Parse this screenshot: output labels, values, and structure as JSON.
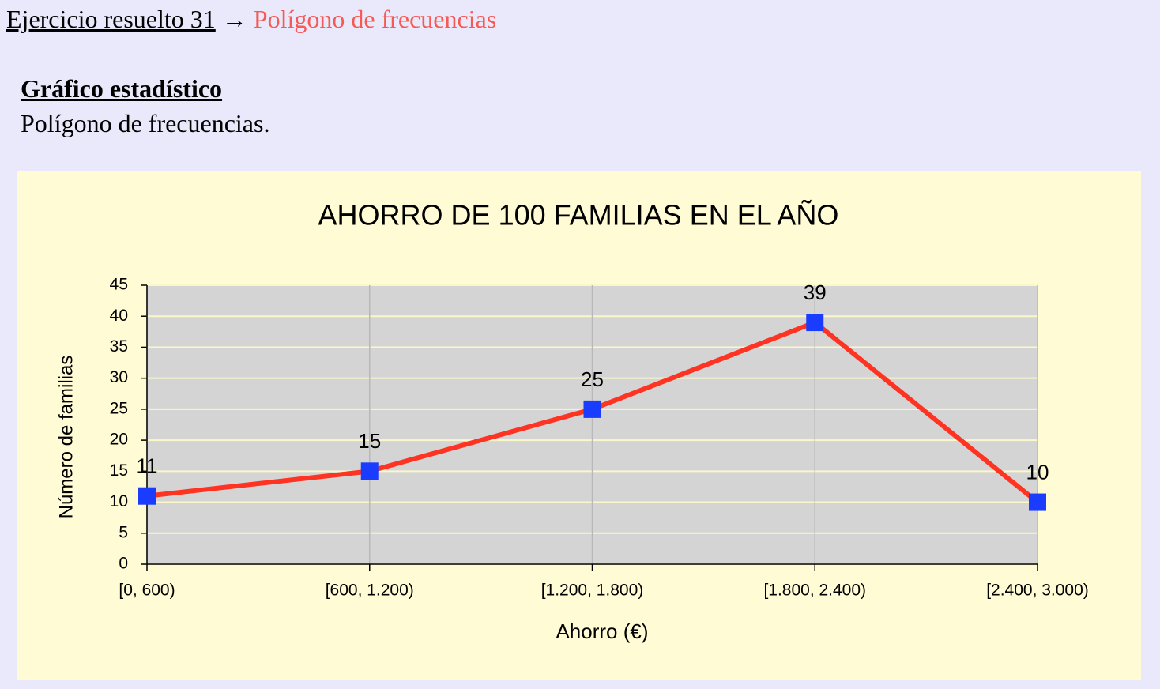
{
  "header": {
    "breadcrumb": "Ejercicio resuelto 31",
    "arrow": "→",
    "current": "Polígono de frecuencias"
  },
  "section": {
    "title": "Gráfico estadístico",
    "text": "Polígono de frecuencias."
  },
  "chart_data": {
    "type": "line",
    "title": "AHORRO DE 100 FAMILIAS EN EL AÑO",
    "x_label": "Ahorro (€)",
    "y_label": "Número de familias",
    "categories": [
      "[0, 600)",
      "[600, 1.200)",
      "[1.200, 1.800)",
      "[1.800, 2.400)",
      "[2.400, 3.000)"
    ],
    "series": [
      {
        "name": "Número de familias",
        "color": "#ff3322",
        "marker_color": "#1a3cff",
        "values": [
          11,
          15,
          25,
          39,
          10
        ]
      }
    ],
    "ylim": [
      0,
      45
    ],
    "yticks": [
      0,
      5,
      10,
      15,
      20,
      25,
      30,
      35,
      40,
      45
    ],
    "grid": true
  }
}
